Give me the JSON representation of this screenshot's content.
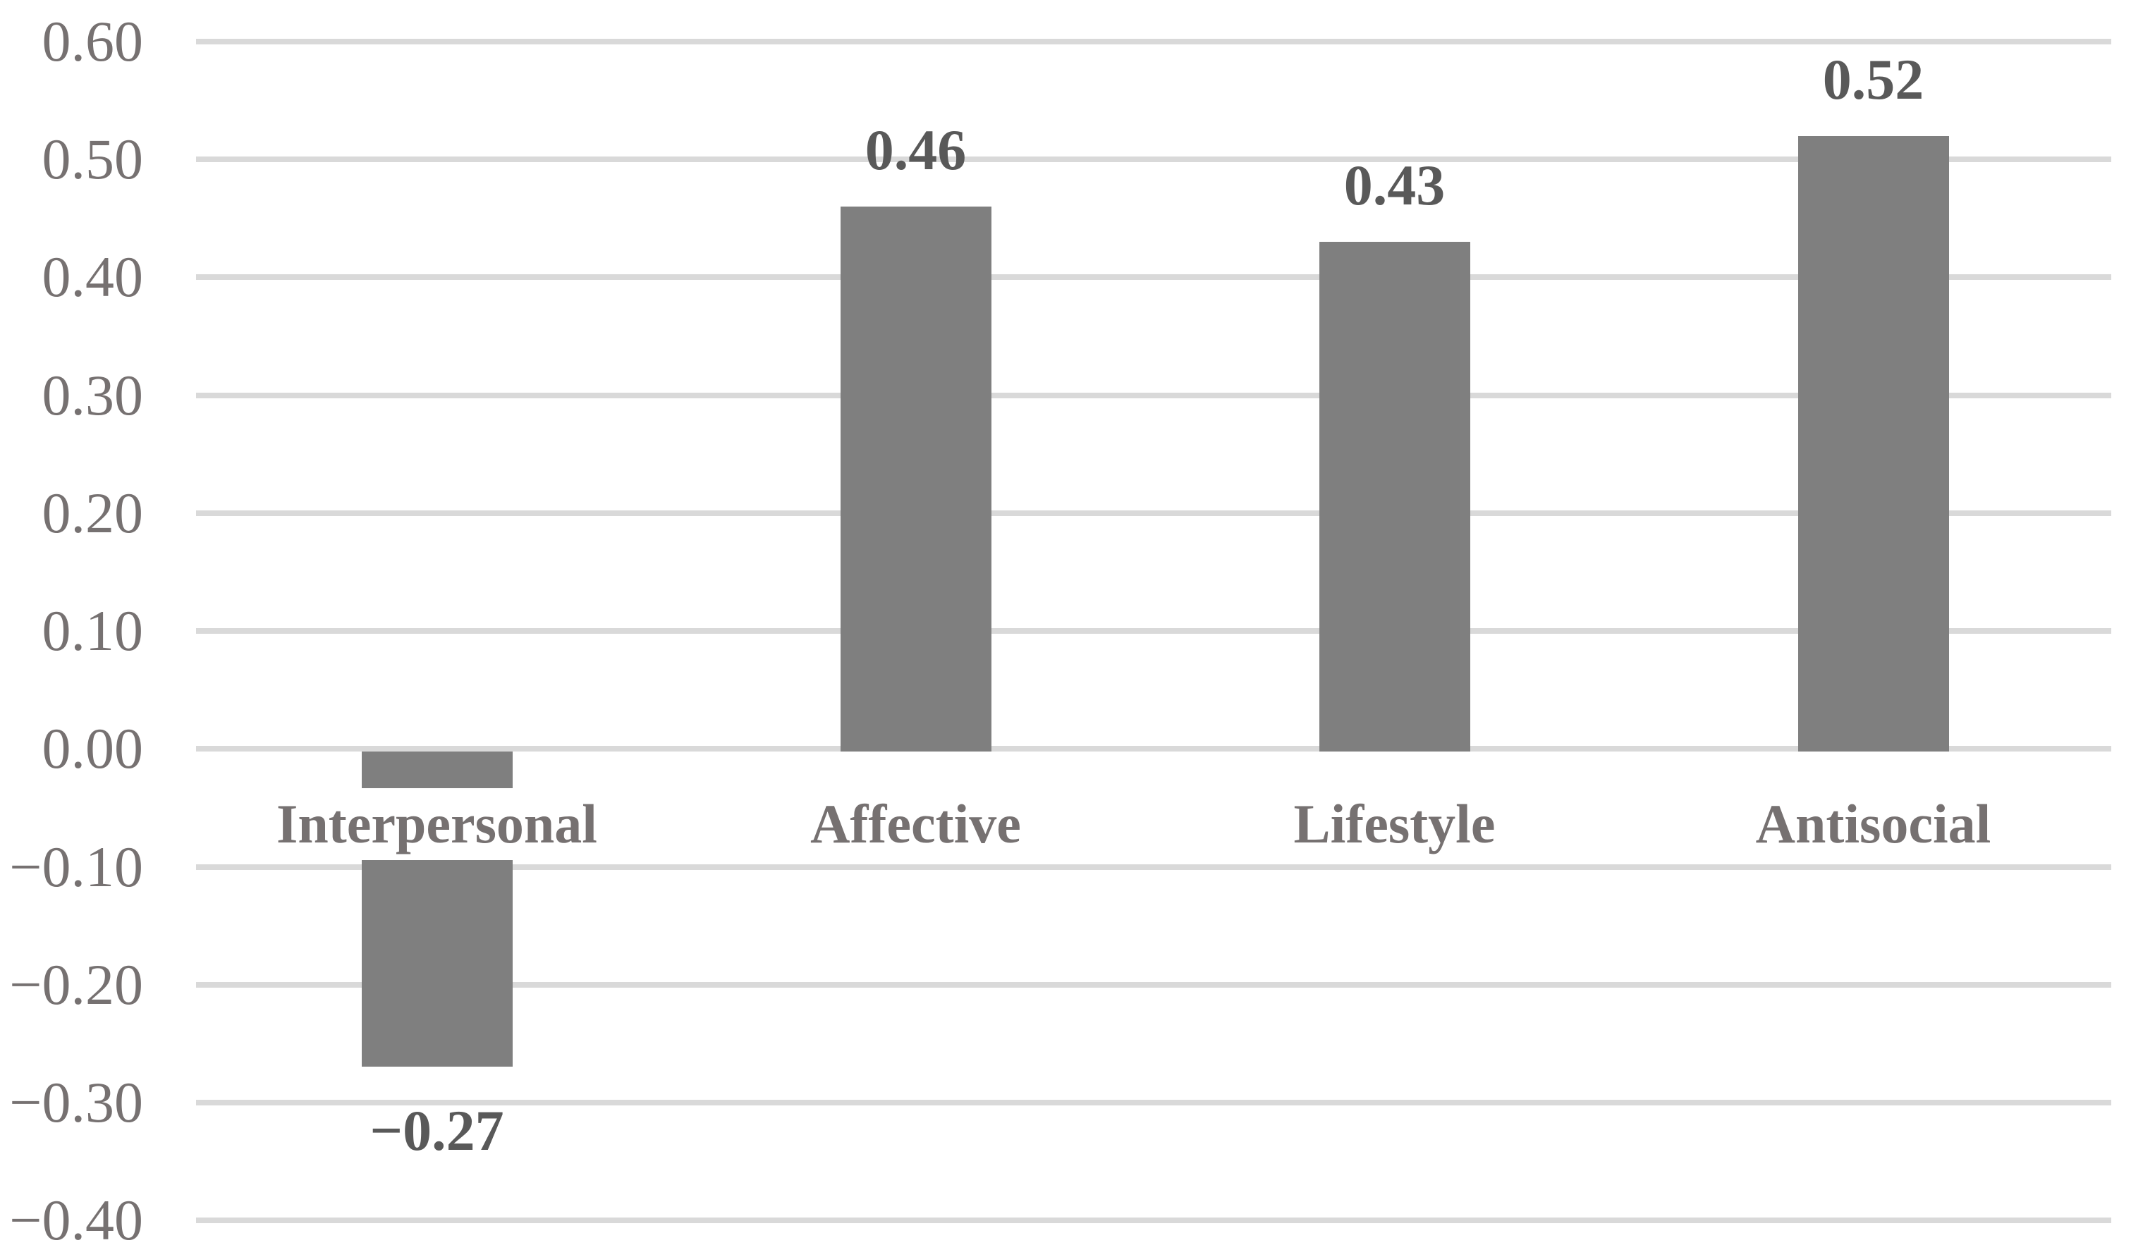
{
  "figure": {
    "background": "#FFFFFF"
  },
  "chart_data": {
    "type": "bar",
    "title": "",
    "xlabel": "",
    "ylabel": "",
    "categories": [
      "Interpersonal",
      "Affective",
      "Lifestyle",
      "Antisocial"
    ],
    "values": [
      -0.27,
      0.46,
      0.43,
      0.52
    ],
    "bar_value_labels": [
      "−0.27",
      "0.46",
      "0.43",
      "0.52"
    ],
    "value_label_position": "outside-end",
    "y_axis": {
      "min": -0.4,
      "max": 0.6,
      "tick_interval": 0.1,
      "tick_labels": [
        "0.60",
        "0.50",
        "0.40",
        "0.30",
        "0.20",
        "0.10",
        "0.00",
        "−0.10",
        "−0.20",
        "−0.30",
        "−0.40"
      ]
    },
    "grid": {
      "visible": true,
      "color": "#D9D9D9"
    },
    "legend_position": "none",
    "bar_color": "#7F7F7F",
    "tick_label_color": "#767171",
    "category_label_color": "#767171",
    "value_label_color": "#595959"
  }
}
